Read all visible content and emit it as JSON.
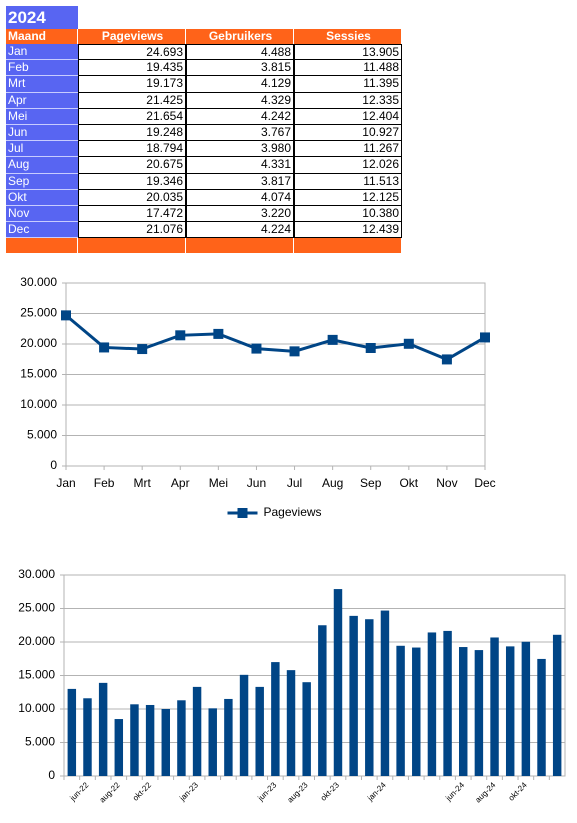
{
  "table": {
    "title": "2024",
    "header": [
      "Maand",
      "Pageviews",
      "Gebruikers",
      "Sessies"
    ],
    "rows": [
      [
        "Jan",
        "24.693",
        "4.488",
        "13.905"
      ],
      [
        "Feb",
        "19.435",
        "3.815",
        "11.488"
      ],
      [
        "Mrt",
        "19.173",
        "4.129",
        "11.395"
      ],
      [
        "Apr",
        "21.425",
        "4.329",
        "12.335"
      ],
      [
        "Mei",
        "21.654",
        "4.242",
        "12.404"
      ],
      [
        "Jun",
        "19.248",
        "3.767",
        "10.927"
      ],
      [
        "Jul",
        "18.794",
        "3.980",
        "11.267"
      ],
      [
        "Aug",
        "20.675",
        "4.331",
        "12.026"
      ],
      [
        "Sep",
        "19.346",
        "3.817",
        "11.513"
      ],
      [
        "Okt",
        "20.035",
        "4.074",
        "12.125"
      ],
      [
        "Nov",
        "17.472",
        "3.220",
        "10.380"
      ],
      [
        "Dec",
        "21.076",
        "4.224",
        "12.439"
      ]
    ]
  },
  "chart_data": [
    {
      "type": "line",
      "categories": [
        "Jan",
        "Feb",
        "Mrt",
        "Apr",
        "Mei",
        "Jun",
        "Jul",
        "Aug",
        "Sep",
        "Okt",
        "Nov",
        "Dec"
      ],
      "series": [
        {
          "name": "Pageviews",
          "color": "#004586",
          "values": [
            24693,
            19435,
            19173,
            21425,
            21654,
            19248,
            18794,
            20675,
            19346,
            20035,
            17472,
            21076
          ]
        }
      ],
      "ylim": [
        0,
        30000
      ],
      "yticks": [
        0,
        {
          "value": 5000,
          "label": "5.000"
        },
        {
          "value": 10000,
          "label": "10.000"
        },
        {
          "value": 15000,
          "label": "15.000"
        },
        {
          "value": 20000,
          "label": "20.000"
        },
        {
          "value": 25000,
          "label": "25.000"
        },
        {
          "value": 30000,
          "label": "30.000"
        }
      ],
      "grid": true,
      "legend": "bottom"
    },
    {
      "type": "bar",
      "categories": [
        null,
        "jun-22",
        null,
        "aug-22",
        null,
        "okt-22",
        null,
        null,
        "jan-23",
        null,
        null,
        null,
        null,
        "jun-23",
        null,
        "aug-23",
        null,
        "okt-23",
        null,
        null,
        "jan-24",
        null,
        null,
        null,
        null,
        "jun-24",
        null,
        "aug-24",
        null,
        "okt-24",
        null,
        null
      ],
      "values": [
        13000,
        11600,
        13900,
        8500,
        10700,
        10600,
        10000,
        11300,
        13300,
        10100,
        11500,
        15100,
        13300,
        17000,
        15800,
        14000,
        22500,
        27900,
        23900,
        23400,
        24693,
        19435,
        19173,
        21425,
        21654,
        19248,
        18794,
        20675,
        19346,
        20035,
        17472,
        21076
      ],
      "color": "#004586",
      "ylim": [
        0,
        30000
      ],
      "yticks": [
        0,
        {
          "value": 5000,
          "label": "5.000"
        },
        {
          "value": 10000,
          "label": "10.000"
        },
        {
          "value": 15000,
          "label": "15.000"
        },
        {
          "value": 20000,
          "label": "20.000"
        },
        {
          "value": 25000,
          "label": "25.000"
        },
        {
          "value": 30000,
          "label": "30.000"
        }
      ],
      "grid": true
    }
  ]
}
